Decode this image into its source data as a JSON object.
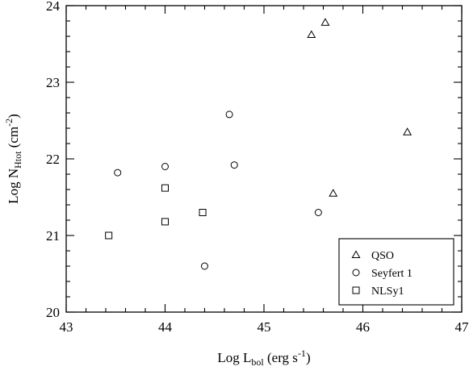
{
  "chart_data": {
    "type": "scatter",
    "xlabel": {
      "main": "Log L",
      "sub": "bol",
      "rest": " (erg s",
      "sup": "-1",
      "end": ")"
    },
    "ylabel": {
      "main": "Log N",
      "sub": "Htot",
      "rest": " (cm",
      "sup": "-2",
      "end": ")"
    },
    "xlim": [
      43,
      47
    ],
    "ylim": [
      20,
      24
    ],
    "xticks": [
      "43",
      "44",
      "45",
      "46",
      "47"
    ],
    "yticks": [
      "20",
      "21",
      "22",
      "23",
      "24"
    ],
    "x_tick_values": [
      43,
      44,
      45,
      46,
      47
    ],
    "y_tick_values": [
      20,
      21,
      22,
      23,
      24
    ],
    "minor_step": 0.2,
    "grid": false,
    "legend_position": "bottom-right",
    "series": [
      {
        "name": "QSO",
        "marker": "triangle",
        "x": [
          45.48,
          45.62,
          45.7,
          46.45
        ],
        "y": [
          23.62,
          23.78,
          21.55,
          22.35
        ]
      },
      {
        "name": "Seyfert 1",
        "marker": "circle",
        "x": [
          43.52,
          44.0,
          44.4,
          44.65,
          44.7,
          45.55
        ],
        "y": [
          21.82,
          21.9,
          20.6,
          22.58,
          21.92,
          21.3
        ]
      },
      {
        "name": "NLSy1",
        "marker": "square",
        "x": [
          43.43,
          44.0,
          44.0,
          44.38
        ],
        "y": [
          21.0,
          21.62,
          21.18,
          21.3
        ]
      }
    ]
  }
}
